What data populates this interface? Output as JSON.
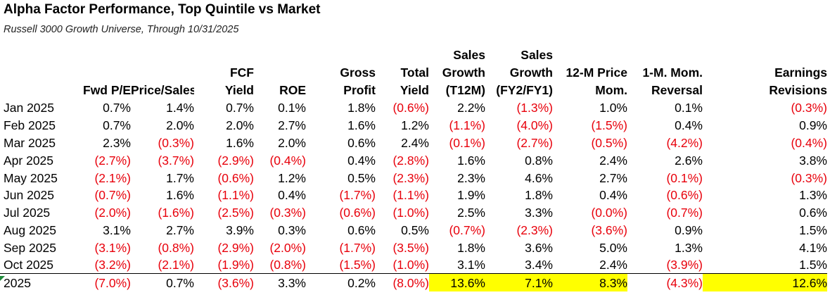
{
  "title": "Alpha Factor Performance, Top Quintile vs Market",
  "subtitle": "Russell 3000 Growth Universe, Through 10/31/2025",
  "columns": [
    [
      "Fwd P/E"
    ],
    [
      "Price/Sales"
    ],
    [
      "FCF",
      "Yield"
    ],
    [
      "ROE"
    ],
    [
      "Gross",
      "Profit"
    ],
    [
      "Total",
      "Yield"
    ],
    [
      "Sales",
      "Growth",
      "(T12M)"
    ],
    [
      "Sales",
      "Growth",
      "(FY2/FY1)"
    ],
    [
      "12-M Price",
      "Mom."
    ],
    [
      "1-M. Mom.",
      "Reversal"
    ],
    [
      "Earnings",
      "Revisions"
    ]
  ],
  "rows": [
    {
      "label": "Jan 2025",
      "values": [
        "0.7%",
        "1.4%",
        "0.7%",
        "0.1%",
        "1.8%",
        "(0.6%)",
        "2.2%",
        "(1.3%)",
        "1.0%",
        "0.1%",
        "(0.3%)"
      ]
    },
    {
      "label": "Feb 2025",
      "values": [
        "0.7%",
        "2.0%",
        "2.0%",
        "2.7%",
        "1.6%",
        "1.2%",
        "(1.1%)",
        "(4.0%)",
        "(1.5%)",
        "0.4%",
        "0.9%"
      ]
    },
    {
      "label": "Mar 2025",
      "values": [
        "2.3%",
        "(0.3%)",
        "1.6%",
        "2.0%",
        "0.6%",
        "2.4%",
        "(0.1%)",
        "(2.7%)",
        "(0.5%)",
        "(4.2%)",
        "(0.4%)"
      ]
    },
    {
      "label": "Apr 2025",
      "values": [
        "(2.7%)",
        "(3.7%)",
        "(2.9%)",
        "(0.4%)",
        "0.4%",
        "(2.8%)",
        "1.6%",
        "0.8%",
        "2.4%",
        "2.6%",
        "3.8%"
      ]
    },
    {
      "label": "May 2025",
      "values": [
        "(2.1%)",
        "1.7%",
        "(0.6%)",
        "1.2%",
        "0.5%",
        "(2.3%)",
        "2.3%",
        "4.6%",
        "2.7%",
        "(0.1%)",
        "(0.3%)"
      ]
    },
    {
      "label": "Jun 2025",
      "values": [
        "(0.7%)",
        "1.6%",
        "(1.1%)",
        "0.4%",
        "(1.7%)",
        "(1.1%)",
        "1.9%",
        "1.8%",
        "0.4%",
        "(0.6%)",
        "1.3%"
      ]
    },
    {
      "label": "Jul 2025",
      "values": [
        "(2.0%)",
        "(1.6%)",
        "(2.5%)",
        "(0.3%)",
        "(0.6%)",
        "(1.0%)",
        "2.5%",
        "3.3%",
        "(0.0%)",
        "(0.7%)",
        "0.6%"
      ]
    },
    {
      "label": "Aug 2025",
      "values": [
        "3.1%",
        "2.7%",
        "3.9%",
        "0.3%",
        "0.6%",
        "0.5%",
        "(0.7%)",
        "(2.3%)",
        "(3.6%)",
        "0.9%",
        "1.5%"
      ]
    },
    {
      "label": "Sep 2025",
      "values": [
        "(3.1%)",
        "(0.8%)",
        "(2.9%)",
        "(2.0%)",
        "(1.7%)",
        "(3.5%)",
        "1.8%",
        "3.6%",
        "5.0%",
        "1.3%",
        "4.1%"
      ]
    },
    {
      "label": "Oct 2025",
      "values": [
        "(3.2%)",
        "(2.1%)",
        "(1.9%)",
        "(0.8%)",
        "(1.5%)",
        "(1.0%)",
        "3.1%",
        "3.4%",
        "2.4%",
        "(3.9%)",
        "1.5%"
      ]
    }
  ],
  "total": {
    "label": "2025",
    "values": [
      "(7.0%)",
      "0.7%",
      "(3.6%)",
      "3.3%",
      "0.2%",
      "(8.0%)",
      "13.6%",
      "7.1%",
      "8.3%",
      "(4.3%)",
      "12.6%"
    ],
    "highlighted": [
      6,
      7,
      8,
      10
    ]
  },
  "colors": {
    "negative": "#e8000b",
    "highlight": "#ffff00",
    "text": "#000000"
  }
}
